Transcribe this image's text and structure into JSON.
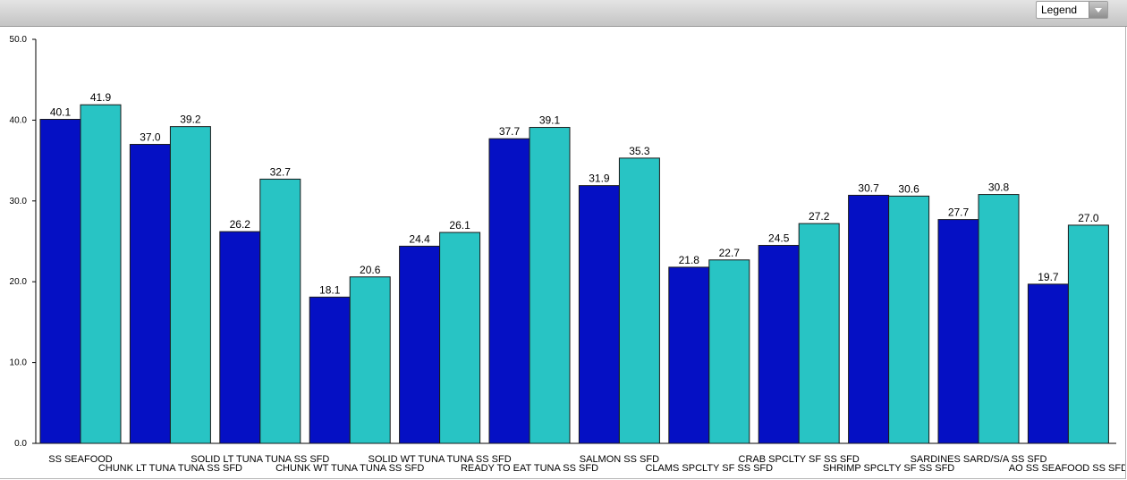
{
  "toolbar": {
    "legend_label": "Legend"
  },
  "chart_data": {
    "type": "bar",
    "categories": [
      "SS SEAFOOD",
      "CHUNK LT TUNA TUNA SS SFD",
      "SOLID LT TUNA TUNA SS SFD",
      "CHUNK WT TUNA TUNA SS SFD",
      "SOLID WT TUNA TUNA SS SFD",
      "READY TO EAT TUNA SS SFD",
      "SALMON SS SFD",
      "CLAMS SPCLTY SF SS SFD",
      "CRAB SPCLTY SF SS SFD",
      "SHRIMP SPCLTY SF SS SFD",
      "SARDINES SARD/S/A SS SFD",
      "AO SS SEAFOOD SS SFD"
    ],
    "series": [
      {
        "color": "#0510c4",
        "values": [
          40.1,
          37.0,
          26.2,
          18.1,
          24.4,
          37.7,
          31.9,
          21.8,
          24.5,
          30.7,
          27.7,
          19.7
        ]
      },
      {
        "color": "#28c4c4",
        "values": [
          41.9,
          39.2,
          32.7,
          20.6,
          26.1,
          39.1,
          35.3,
          22.7,
          27.2,
          30.6,
          30.8,
          27.0
        ]
      }
    ],
    "data_labels": [
      [
        "40.1",
        "37.0",
        "26.2",
        "18.1",
        "24.4",
        "37.7",
        "31.9",
        "21.8",
        "24.5",
        "30.7",
        "27.7",
        "19.7"
      ],
      [
        "41.9",
        "39.2",
        "32.7",
        "20.6",
        "26.1",
        "39.1",
        "35.3",
        "22.7",
        "27.2",
        "30.6",
        "30.8",
        "27.0"
      ]
    ],
    "yticks": [
      0,
      10,
      20,
      30,
      40,
      50
    ],
    "ytick_labels": [
      "0.0",
      "10.0",
      "20.0",
      "30.0",
      "40.0",
      "50.0"
    ],
    "ylim": [
      0,
      50
    ],
    "grid": false,
    "title": "",
    "xlabel": "",
    "ylabel": ""
  }
}
